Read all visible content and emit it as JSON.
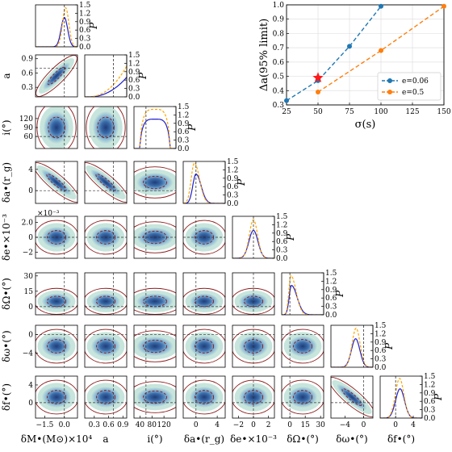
{
  "chart_data": [
    {
      "type": "corner",
      "parameters": [
        {
          "key": "dM",
          "label": "δM•(M⊙)×10⁴",
          "range": [
            -2.2,
            1.0
          ],
          "ticks": [
            -1.5,
            0.0
          ],
          "tick_labels": [
            "−1.5",
            "0.0"
          ],
          "truth": 0.0
        },
        {
          "key": "a",
          "label": "a",
          "range": [
            0.1,
            0.98
          ],
          "ticks": [
            0.3,
            0.6,
            0.9
          ],
          "tick_labels": [
            "0.3",
            "0.6",
            "0.9"
          ],
          "truth": 0.7
        },
        {
          "key": "i",
          "label": "i(°)",
          "range": [
            20,
            160
          ],
          "ticks": [
            40,
            80,
            120
          ],
          "tick_labels": [
            "40",
            "80",
            "120"
          ],
          "truth": 60
        },
        {
          "key": "da",
          "label": "δa•(r_g)",
          "range": [
            -2.4,
            5.5
          ],
          "ticks": [
            0,
            4
          ],
          "tick_labels": [
            "0",
            "4"
          ],
          "truth": 0.0
        },
        {
          "key": "de",
          "label": "δe•×10⁻³",
          "range": [
            -2.8,
            2.8
          ],
          "ticks": [
            -2,
            0,
            2
          ],
          "tick_labels": [
            "−2",
            "0",
            "2"
          ],
          "truth": 0.0
        },
        {
          "key": "dO",
          "label": "δΩ•(°)",
          "range": [
            -8,
            33
          ],
          "ticks": [
            0,
            15,
            30
          ],
          "tick_labels": [
            "0",
            "15",
            "30"
          ],
          "truth": 0.0
        },
        {
          "key": "dw",
          "label": "δω•(°)",
          "range": [
            -7,
            2
          ],
          "ticks": [
            -4,
            0
          ],
          "tick_labels": [
            "−4",
            "0"
          ],
          "truth": 0.0
        },
        {
          "key": "df",
          "label": "δf•(°)",
          "range": [
            -3.5,
            6
          ],
          "ticks": [
            0,
            4
          ],
          "tick_labels": [
            "0",
            "4"
          ],
          "truth": 0.0
        }
      ],
      "row_ticks": {
        "a": {
          "ticks": [
            0.3,
            0.6,
            0.9
          ],
          "labels": [
            "0.3",
            "0.6",
            "0.9"
          ]
        },
        "i": {
          "ticks": [
            60,
            90,
            120
          ],
          "labels": [
            "60",
            "90",
            "120"
          ]
        },
        "da": {
          "ticks": [
            0,
            4
          ],
          "labels": [
            "0",
            "4"
          ]
        },
        "de": {
          "ticks": [
            -2,
            0,
            2
          ],
          "labels": [
            "−2",
            "0",
            "2.0"
          ]
        },
        "dO": {
          "ticks": [
            0,
            15,
            30
          ],
          "labels": [
            "0",
            "15",
            "30"
          ]
        },
        "dw": {
          "ticks": [
            -4,
            0
          ],
          "labels": [
            "−4",
            "0"
          ]
        },
        "df": {
          "ticks": [
            0,
            4
          ],
          "labels": [
            "0",
            "4"
          ]
        }
      },
      "de_offset_label": "×10⁻³",
      "marginal_axis": {
        "label": "P",
        "ticks": [
          0.0,
          0.3,
          0.6,
          0.9,
          1.2,
          1.5
        ],
        "tick_labels": [
          "0.0",
          "0.3",
          "0.6",
          "0.9",
          "1.2",
          "1.5"
        ],
        "range": [
          0,
          1.5
        ]
      },
      "marginals": {
        "dM": {
          "blue": {
            "mu": 0.0,
            "sigma": 0.25,
            "peak": 1.05
          },
          "orange": {
            "mu": 0.1,
            "sigma": 0.24,
            "peak": 1.4
          }
        },
        "a": {
          "blue": {
            "shape": "rising",
            "start": 0.45,
            "end_value": 0.7
          },
          "orange": {
            "shape": "rising",
            "start": 0.42,
            "end_value": 1.1
          }
        },
        "i": {
          "blue": {
            "shape": "plateau",
            "lo": 40,
            "hi": 140,
            "peak": 1.05
          },
          "orange": {
            "shape": "plateau",
            "lo": 40,
            "hi": 140,
            "peak": 1.4
          }
        },
        "da": {
          "blue": {
            "mu": 0.0,
            "sigma": 0.6,
            "peak": 1.05,
            "skew": 1.6
          },
          "orange": {
            "mu": -0.3,
            "sigma": 0.6,
            "peak": 1.45,
            "skew": 1.6
          }
        },
        "de": {
          "blue": {
            "mu": 0.0,
            "sigma": 0.6,
            "peak": 1.0
          },
          "orange": {
            "mu": 0.0,
            "sigma": 0.55,
            "peak": 1.38
          }
        },
        "dO": {
          "blue": {
            "mu": 1.5,
            "sigma": 2.2,
            "peak": 1.05,
            "skew": 2.5
          },
          "orange": {
            "mu": 1.0,
            "sigma": 2.0,
            "peak": 1.4,
            "skew": 2.5
          }
        },
        "dw": {
          "blue": {
            "mu": -1.7,
            "sigma": 0.9,
            "peak": 1.02
          },
          "orange": {
            "mu": -1.6,
            "sigma": 0.85,
            "peak": 1.4
          }
        },
        "df": {
          "blue": {
            "mu": 1.0,
            "sigma": 1.0,
            "peak": 1.05
          },
          "orange": {
            "mu": 0.9,
            "sigma": 0.95,
            "peak": 1.42
          }
        }
      },
      "legend_colors": {
        "blue": "#1f1fcf",
        "orange": "#ffa500",
        "contour_outer": "#8b1a1a",
        "fill_dark": "#2b4f86",
        "fill_mid": "#5b8fc2",
        "fill_light": "#bde0d6"
      }
    },
    {
      "type": "line",
      "xlabel": "σ(s)",
      "ylabel": "Δa(95% limit)",
      "xlim": [
        25,
        150
      ],
      "ylim": [
        0.3,
        1.0
      ],
      "xticks": [
        25,
        50,
        75,
        100,
        125,
        150
      ],
      "yticks": [
        0.3,
        0.4,
        0.5,
        0.6,
        0.7,
        0.8,
        0.9,
        1.0
      ],
      "ytick_labels": [
        "0.3",
        "0.4",
        "0.5",
        "0.6",
        "0.7",
        "0.8",
        "0.9",
        "1.0"
      ],
      "grid": true,
      "legend": "bottom-right",
      "series": [
        {
          "name": "e=0.06",
          "color": "#1f77b4",
          "x": [
            25,
            50,
            75,
            100
          ],
          "y": [
            0.33,
            0.47,
            0.71,
            0.99
          ]
        },
        {
          "name": "e=0.5",
          "color": "#ff7f0e",
          "x": [
            50,
            100,
            150
          ],
          "y": [
            0.39,
            0.68,
            0.99
          ]
        }
      ],
      "marker": {
        "shape": "star",
        "x": 50,
        "y": 0.49,
        "color": "#ff1a1a"
      }
    }
  ]
}
